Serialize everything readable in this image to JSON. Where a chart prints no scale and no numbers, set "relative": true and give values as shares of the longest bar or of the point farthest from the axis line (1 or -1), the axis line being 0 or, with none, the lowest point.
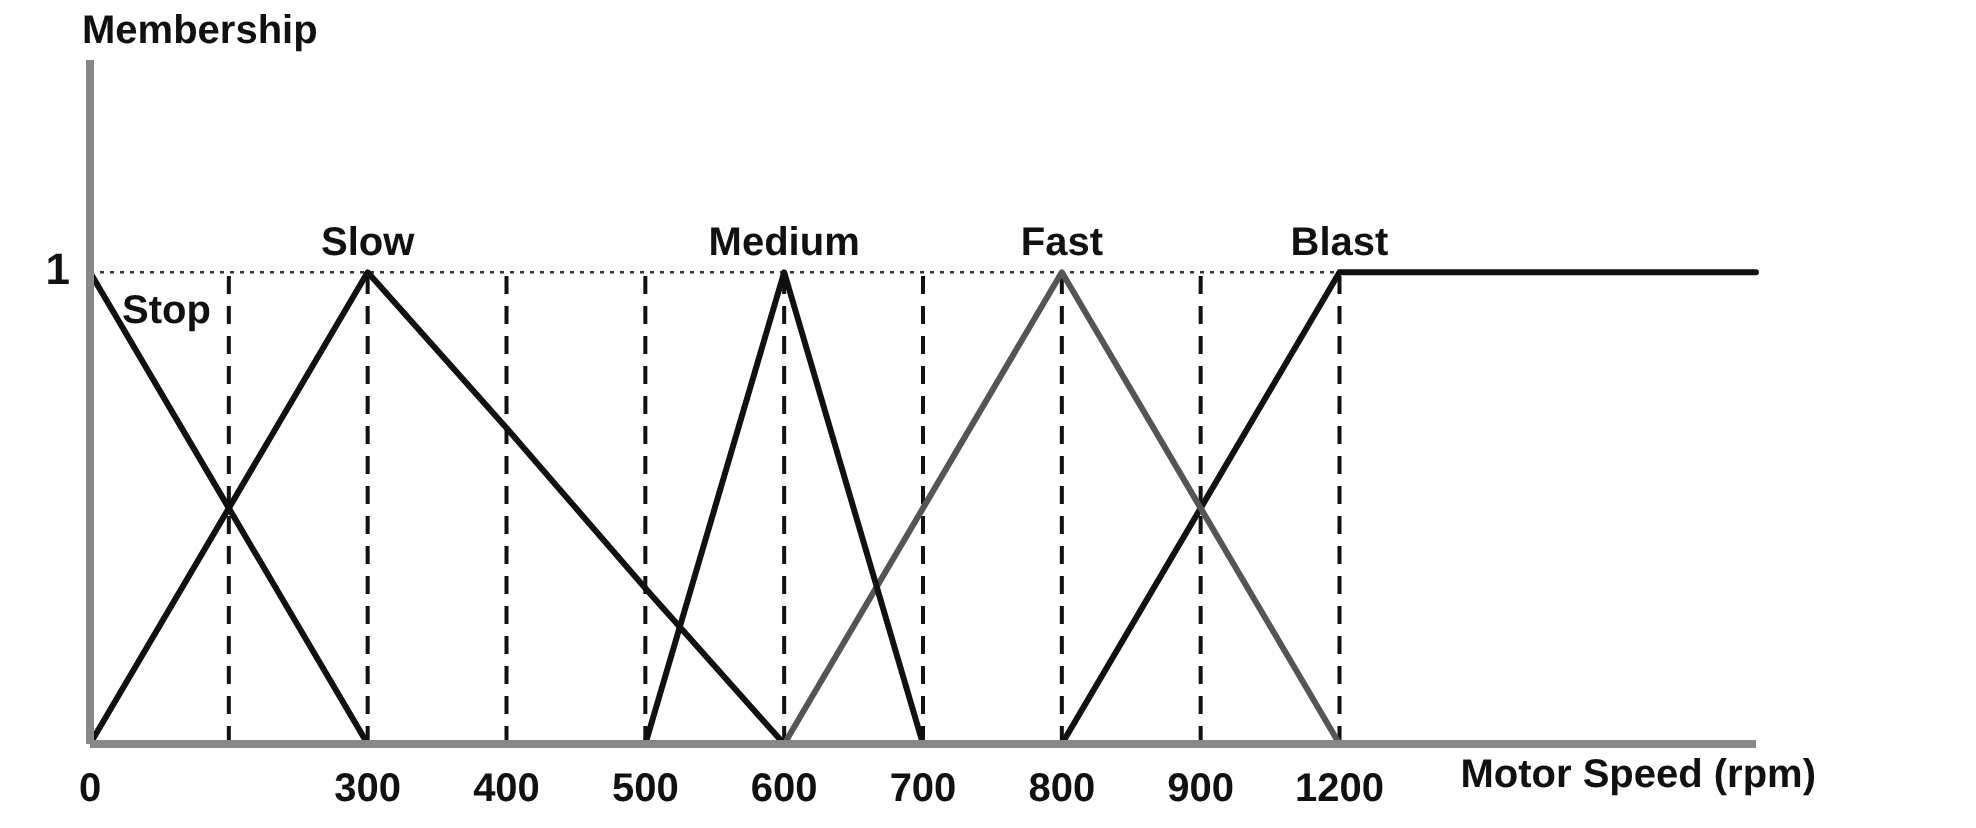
{
  "chart_data": {
    "type": "line",
    "xlabel": "Motor Speed (rpm)",
    "categories": [
      "0",
      null,
      "300",
      "400",
      "500",
      "600",
      "700",
      "800",
      "900",
      "1200",
      null,
      null,
      null
    ],
    "series": [
      {
        "name": "Stop",
        "color": "#111111",
        "values": [
          1,
          0.5,
          0,
          null,
          null,
          null,
          null,
          null,
          null,
          null,
          null,
          null,
          null
        ]
      },
      {
        "name": "Slow",
        "color": "#111111",
        "values": [
          0,
          0.5,
          1,
          0.67,
          0.33,
          0,
          null,
          null,
          null,
          null,
          null,
          null,
          null
        ]
      },
      {
        "name": "Medium",
        "color": "#111111",
        "values": [
          null,
          null,
          null,
          null,
          0,
          1,
          0,
          null,
          null,
          null,
          null,
          null,
          null
        ]
      },
      {
        "name": "Fast",
        "color": "#555555",
        "values": [
          null,
          null,
          null,
          null,
          null,
          0,
          0.5,
          1,
          0.5,
          0,
          null,
          null,
          null
        ]
      },
      {
        "name": "Blast",
        "color": "#111111",
        "values": [
          null,
          null,
          null,
          null,
          null,
          null,
          null,
          0,
          0.5,
          1,
          1,
          1,
          1
        ]
      }
    ],
    "relative": true,
    "annotations": [
      "Membership",
      "1"
    ],
    "grid": true,
    "legend": false,
    "marker": "none",
    "line_style": "solid"
  }
}
